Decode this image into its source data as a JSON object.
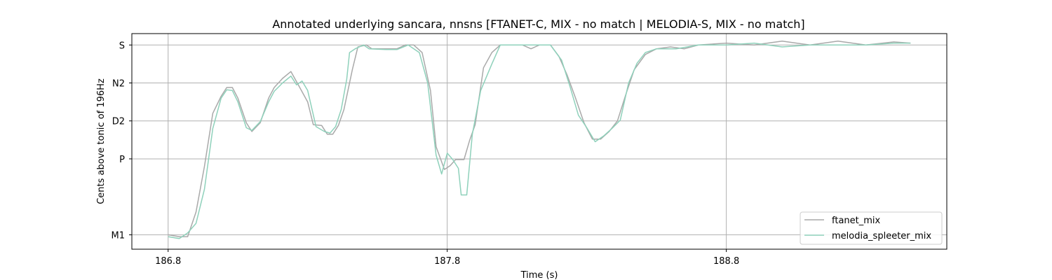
{
  "chart_data": {
    "type": "line",
    "title": "Annotated underlying sancara, nnsns [FTANET-C, MIX - no match | MELODIA-S, MIX - no match]",
    "xlabel": "Time (s)",
    "ylabel": "Cents above tonic of 196Hz",
    "xlim": [
      186.67,
      189.59
    ],
    "ylim": [
      -538,
      30
    ],
    "x_ticks": [
      186.8,
      187.8,
      188.8
    ],
    "x_tick_labels": [
      "186.8",
      "187.8",
      "188.8"
    ],
    "y_ticks": [
      -500,
      -300,
      -200,
      -100,
      0
    ],
    "y_tick_labels": [
      "M1",
      "P",
      "D2",
      "N2",
      "S"
    ],
    "grid": true,
    "legend_position": "lower-right",
    "colors": {
      "grid": "#b0b0b0",
      "axes": "#000000"
    },
    "series": [
      {
        "name": "ftanet_mix",
        "color": "#a9a9a9",
        "points": [
          [
            186.8,
            -500
          ],
          [
            186.84,
            -505
          ],
          [
            186.87,
            -505
          ],
          [
            186.9,
            -440
          ],
          [
            186.93,
            -320
          ],
          [
            186.96,
            -180
          ],
          [
            186.99,
            -135
          ],
          [
            187.01,
            -112
          ],
          [
            187.03,
            -112
          ],
          [
            187.05,
            -140
          ],
          [
            187.08,
            -205
          ],
          [
            187.1,
            -228
          ],
          [
            187.13,
            -205
          ],
          [
            187.16,
            -140
          ],
          [
            187.18,
            -112
          ],
          [
            187.21,
            -88
          ],
          [
            187.24,
            -70
          ],
          [
            187.27,
            -110
          ],
          [
            187.3,
            -150
          ],
          [
            187.32,
            -210
          ],
          [
            187.35,
            -212
          ],
          [
            187.37,
            -235
          ],
          [
            187.39,
            -235
          ],
          [
            187.41,
            -212
          ],
          [
            187.43,
            -170
          ],
          [
            187.46,
            -65
          ],
          [
            187.48,
            -5
          ],
          [
            187.51,
            0
          ],
          [
            187.53,
            -10
          ],
          [
            187.58,
            -10
          ],
          [
            187.62,
            -10
          ],
          [
            187.65,
            0
          ],
          [
            187.68,
            0
          ],
          [
            187.71,
            -20
          ],
          [
            187.74,
            -120
          ],
          [
            187.76,
            -268
          ],
          [
            187.79,
            -328
          ],
          [
            187.81,
            -318
          ],
          [
            187.83,
            -302
          ],
          [
            187.86,
            -302
          ],
          [
            187.88,
            -252
          ],
          [
            187.9,
            -210
          ],
          [
            187.93,
            -60
          ],
          [
            187.96,
            -20
          ],
          [
            187.99,
            0
          ],
          [
            188.02,
            0
          ],
          [
            188.07,
            0
          ],
          [
            188.1,
            -10
          ],
          [
            188.13,
            0
          ],
          [
            188.17,
            0
          ],
          [
            188.2,
            -30
          ],
          [
            188.23,
            -80
          ],
          [
            188.26,
            -140
          ],
          [
            188.29,
            -205
          ],
          [
            188.32,
            -248
          ],
          [
            188.35,
            -248
          ],
          [
            188.38,
            -228
          ],
          [
            188.41,
            -200
          ],
          [
            188.44,
            -130
          ],
          [
            188.47,
            -65
          ],
          [
            188.51,
            -25
          ],
          [
            188.55,
            -10
          ],
          [
            188.6,
            -5
          ],
          [
            188.65,
            -10
          ],
          [
            188.7,
            0
          ],
          [
            188.8,
            5
          ],
          [
            188.9,
            0
          ],
          [
            189.0,
            10
          ],
          [
            189.1,
            0
          ],
          [
            189.2,
            10
          ],
          [
            189.3,
            0
          ],
          [
            189.4,
            8
          ],
          [
            189.46,
            5
          ]
        ]
      },
      {
        "name": "melodia_spleeter_mix",
        "color": "#8fd1bb",
        "points": [
          [
            186.8,
            -505
          ],
          [
            186.84,
            -510
          ],
          [
            186.87,
            -495
          ],
          [
            186.9,
            -470
          ],
          [
            186.93,
            -380
          ],
          [
            186.96,
            -220
          ],
          [
            186.99,
            -140
          ],
          [
            187.01,
            -118
          ],
          [
            187.03,
            -120
          ],
          [
            187.05,
            -150
          ],
          [
            187.08,
            -218
          ],
          [
            187.1,
            -225
          ],
          [
            187.13,
            -202
          ],
          [
            187.16,
            -150
          ],
          [
            187.18,
            -122
          ],
          [
            187.21,
            -100
          ],
          [
            187.24,
            -82
          ],
          [
            187.26,
            -105
          ],
          [
            187.28,
            -95
          ],
          [
            187.3,
            -120
          ],
          [
            187.33,
            -215
          ],
          [
            187.36,
            -228
          ],
          [
            187.38,
            -232
          ],
          [
            187.4,
            -215
          ],
          [
            187.42,
            -170
          ],
          [
            187.44,
            -90
          ],
          [
            187.45,
            -20
          ],
          [
            187.47,
            -10
          ],
          [
            187.5,
            0
          ],
          [
            187.52,
            -10
          ],
          [
            187.58,
            -12
          ],
          [
            187.62,
            -12
          ],
          [
            187.66,
            0
          ],
          [
            187.7,
            -20
          ],
          [
            187.73,
            -100
          ],
          [
            187.76,
            -290
          ],
          [
            187.78,
            -340
          ],
          [
            187.8,
            -285
          ],
          [
            187.82,
            -302
          ],
          [
            187.84,
            -325
          ],
          [
            187.85,
            -395
          ],
          [
            187.87,
            -395
          ],
          [
            187.89,
            -235
          ],
          [
            187.92,
            -120
          ],
          [
            187.96,
            -50
          ],
          [
            187.99,
            0
          ],
          [
            188.04,
            0
          ],
          [
            188.08,
            0
          ],
          [
            188.13,
            0
          ],
          [
            188.17,
            0
          ],
          [
            188.21,
            -40
          ],
          [
            188.24,
            -110
          ],
          [
            188.27,
            -185
          ],
          [
            188.3,
            -218
          ],
          [
            188.33,
            -255
          ],
          [
            188.36,
            -240
          ],
          [
            188.39,
            -220
          ],
          [
            188.42,
            -198
          ],
          [
            188.45,
            -100
          ],
          [
            188.48,
            -48
          ],
          [
            188.51,
            -20
          ],
          [
            188.55,
            -10
          ],
          [
            188.62,
            -10
          ],
          [
            188.7,
            0
          ],
          [
            188.8,
            0
          ],
          [
            188.9,
            5
          ],
          [
            189.0,
            -5
          ],
          [
            189.1,
            0
          ],
          [
            189.2,
            0
          ],
          [
            189.3,
            0
          ],
          [
            189.4,
            5
          ],
          [
            189.46,
            5
          ]
        ]
      }
    ]
  }
}
